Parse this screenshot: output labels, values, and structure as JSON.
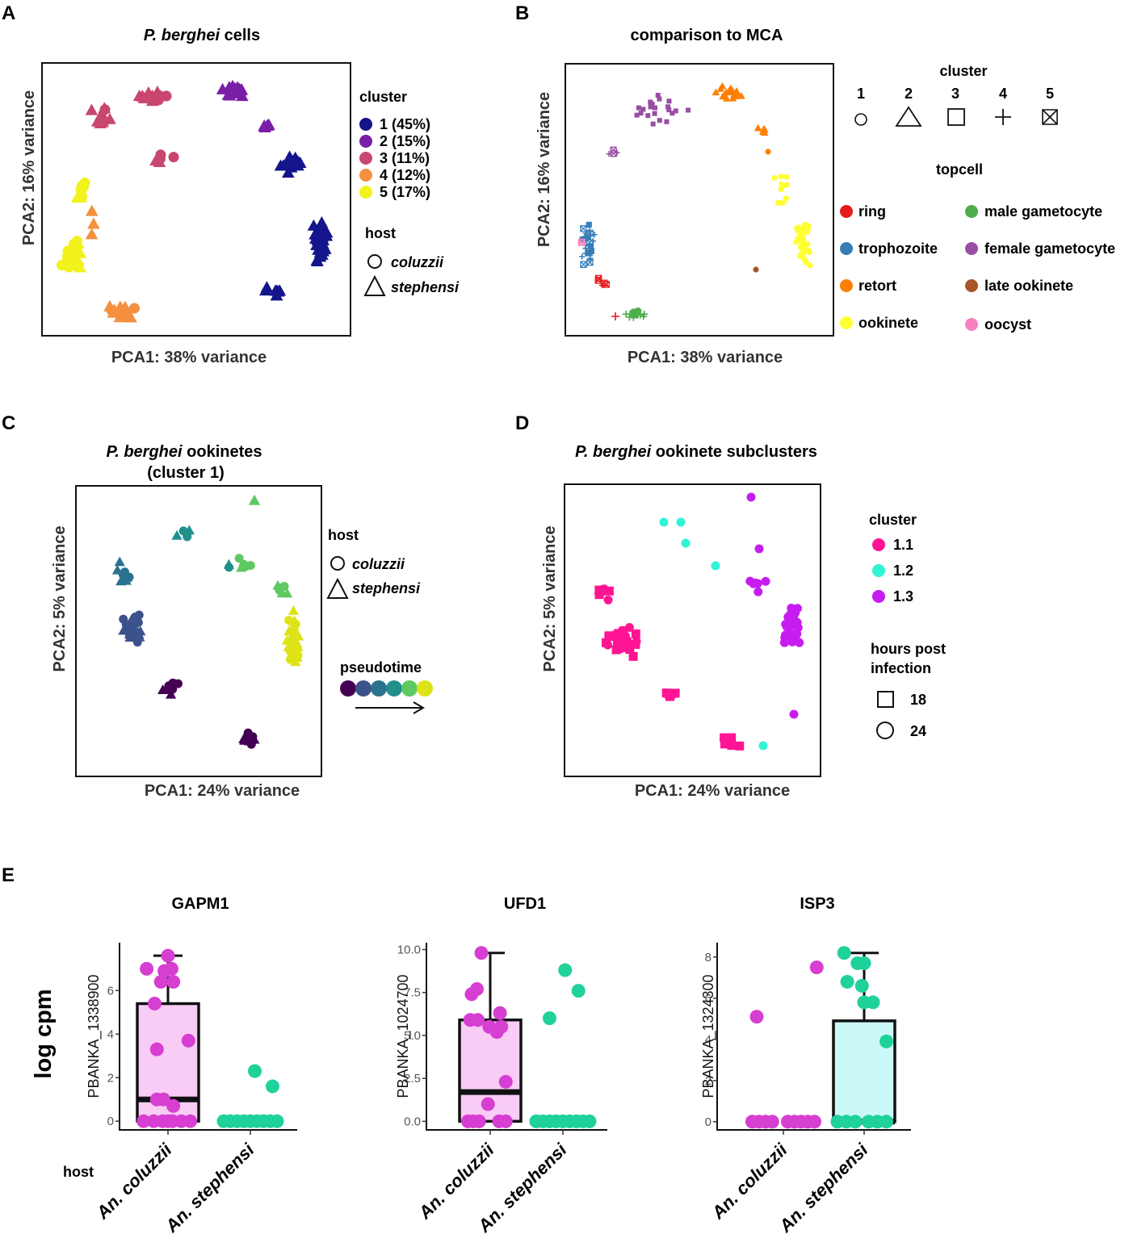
{
  "chart_data": [
    {
      "type": "scatter",
      "panel": "A",
      "title_italic": "P. berghei",
      "title_rest": " cells",
      "xlabel": "PCA1: 38% variance",
      "ylabel": "PCA2: 16% variance",
      "legend": {
        "cluster_title": "cluster",
        "clusters": [
          {
            "label": "1 (45%)",
            "color": "#14148c"
          },
          {
            "label": "2 (15%)",
            "color": "#7a1ea8"
          },
          {
            "label": "3 (11%)",
            "color": "#c9466e"
          },
          {
            "label": "4 (12%)",
            "color": "#f4903e"
          },
          {
            "label": "5 (17%)",
            "color": "#f2f21c"
          }
        ],
        "host_title": "host",
        "hosts": [
          "coluzzii",
          "stephensi"
        ]
      }
    },
    {
      "type": "scatter",
      "panel": "B",
      "title": "comparison to MCA",
      "xlabel": "PCA1: 38% variance",
      "ylabel": "PCA2: 16% variance",
      "legend": {
        "cluster_title": "cluster",
        "clusters": [
          "1",
          "2",
          "3",
          "4",
          "5"
        ],
        "topcell_title": "topcell",
        "topcells": [
          {
            "label": "ring",
            "color": "#e41a1c"
          },
          {
            "label": "trophozoite",
            "color": "#377eb8"
          },
          {
            "label": "retort",
            "color": "#ff7f00"
          },
          {
            "label": "ookinete",
            "color": "#ffff33"
          },
          {
            "label": "male gametocyte",
            "color": "#4daf4a"
          },
          {
            "label": "female gametocyte",
            "color": "#984ea3"
          },
          {
            "label": "late ookinete",
            "color": "#a65628"
          },
          {
            "label": "oocyst",
            "color": "#f781bf"
          }
        ]
      }
    },
    {
      "type": "scatter",
      "panel": "C",
      "title_italic": "P. berghei",
      "title_rest": " ookinetes",
      "title_line2": "(cluster 1)",
      "xlabel": "PCA1: 24% variance",
      "ylabel": "PCA2: 5% variance",
      "legend": {
        "host_title": "host",
        "hosts": [
          "coluzzii",
          "stephensi"
        ],
        "pseudotime_title": "pseudotime",
        "pseudotime_colors": [
          "#440154",
          "#3b528b",
          "#2c728e",
          "#21908d",
          "#5ec962",
          "#dde318"
        ]
      }
    },
    {
      "type": "scatter",
      "panel": "D",
      "title_italic": "P. berghei",
      "title_rest": " ookinete subclusters",
      "xlabel": "PCA1: 24% variance",
      "ylabel": "PCA2: 5% variance",
      "legend": {
        "cluster_title": "cluster",
        "clusters": [
          {
            "label": "1.1",
            "color": "#ff1493"
          },
          {
            "label": "1.2",
            "color": "#2ff5d5"
          },
          {
            "label": "1.3",
            "color": "#c71cf0"
          }
        ],
        "hpi_title_line1": "hours post",
        "hpi_title_line2": "infection",
        "hpi": [
          "18",
          "24"
        ]
      }
    },
    {
      "type": "box",
      "panel": "E",
      "ylabel_shared": "log cpm",
      "xlabel": "host",
      "categories": [
        "An. coluzzii",
        "An. stephensi"
      ],
      "colors": {
        "coluzzii": "#d63fd1",
        "stephensi": "#1fd19a",
        "box_coluzzii": "#f9ccf5",
        "box_stephensi": "#ccf9f7"
      },
      "plots": [
        {
          "title": "GAPM1",
          "gene": "PBANKA_1338900",
          "ylim": [
            -0.4,
            8.2
          ],
          "ticks": [
            0,
            2,
            4,
            6
          ],
          "tick_labels": [
            "0",
            "2",
            "4",
            "6"
          ],
          "box": {
            "group": 0,
            "q1": 0,
            "median": 1.0,
            "q3": 5.4,
            "whisker_low": 0,
            "whisker_high": 7.6
          },
          "points": [
            {
              "group": 0,
              "dx": 0.0,
              "y": 7.6
            },
            {
              "group": 0,
              "dx": -0.48,
              "y": 7.0
            },
            {
              "group": 0,
              "dx": 0.08,
              "y": 7.0
            },
            {
              "group": 0,
              "dx": -0.16,
              "y": 6.4
            },
            {
              "group": 0,
              "dx": -0.08,
              "y": 6.9
            },
            {
              "group": 0,
              "dx": 0.12,
              "y": 6.4
            },
            {
              "group": 0,
              "dx": -0.3,
              "y": 5.4
            },
            {
              "group": 0,
              "dx": -0.25,
              "y": 3.3
            },
            {
              "group": 0,
              "dx": 0.46,
              "y": 3.7
            },
            {
              "group": 0,
              "dx": -0.25,
              "y": 1.0
            },
            {
              "group": 0,
              "dx": -0.1,
              "y": 1.0
            },
            {
              "group": 0,
              "dx": 0.12,
              "y": 0.7
            },
            {
              "group": 0,
              "dx": -0.55,
              "y": 0
            },
            {
              "group": 0,
              "dx": -0.32,
              "y": 0
            },
            {
              "group": 0,
              "dx": -0.12,
              "y": 0
            },
            {
              "group": 0,
              "dx": 0.0,
              "y": 0
            },
            {
              "group": 0,
              "dx": 0.1,
              "y": 0
            },
            {
              "group": 0,
              "dx": 0.3,
              "y": 0
            },
            {
              "group": 0,
              "dx": 0.5,
              "y": 0
            },
            {
              "group": 1,
              "dx": 0.1,
              "y": 2.3
            },
            {
              "group": 1,
              "dx": 0.5,
              "y": 1.6
            },
            {
              "group": 1,
              "dx": -0.6,
              "y": 0
            },
            {
              "group": 1,
              "dx": -0.45,
              "y": 0
            },
            {
              "group": 1,
              "dx": -0.3,
              "y": 0
            },
            {
              "group": 1,
              "dx": -0.15,
              "y": 0
            },
            {
              "group": 1,
              "dx": 0.0,
              "y": 0
            },
            {
              "group": 1,
              "dx": 0.15,
              "y": 0
            },
            {
              "group": 1,
              "dx": 0.3,
              "y": 0
            },
            {
              "group": 1,
              "dx": 0.45,
              "y": 0
            },
            {
              "group": 1,
              "dx": 0.6,
              "y": 0
            }
          ]
        },
        {
          "title": "UFD1",
          "gene": "PBANKA_1024700",
          "ylim": [
            -0.5,
            10.4
          ],
          "ticks": [
            0,
            2.5,
            5,
            7.5,
            10
          ],
          "tick_labels": [
            "0.0",
            "2.5",
            "5.0",
            "7.5",
            "10.0"
          ],
          "box": {
            "group": 0,
            "q1": 0,
            "median": 1.7,
            "q3": 5.9,
            "whisker_low": 0,
            "whisker_high": 9.8
          },
          "points": [
            {
              "group": 0,
              "dx": -0.2,
              "y": 9.8
            },
            {
              "group": 0,
              "dx": -0.3,
              "y": 7.7
            },
            {
              "group": 0,
              "dx": -0.42,
              "y": 7.4
            },
            {
              "group": 0,
              "dx": -0.45,
              "y": 5.9
            },
            {
              "group": 0,
              "dx": -0.28,
              "y": 5.9
            },
            {
              "group": 0,
              "dx": 0.22,
              "y": 6.3
            },
            {
              "group": 0,
              "dx": 0.25,
              "y": 5.5
            },
            {
              "group": 0,
              "dx": 0.15,
              "y": 5.2
            },
            {
              "group": 0,
              "dx": -0.02,
              "y": 5.5
            },
            {
              "group": 0,
              "dx": 0.35,
              "y": 2.3
            },
            {
              "group": 0,
              "dx": -0.05,
              "y": 1.0
            },
            {
              "group": 0,
              "dx": -0.5,
              "y": 0
            },
            {
              "group": 0,
              "dx": -0.38,
              "y": 0
            },
            {
              "group": 0,
              "dx": -0.25,
              "y": 0
            },
            {
              "group": 0,
              "dx": 0.2,
              "y": 0
            },
            {
              "group": 0,
              "dx": 0.35,
              "y": 0
            },
            {
              "group": 1,
              "dx": 0.05,
              "y": 8.8
            },
            {
              "group": 1,
              "dx": 0.35,
              "y": 7.6
            },
            {
              "group": 1,
              "dx": -0.3,
              "y": 6.0
            },
            {
              "group": 1,
              "dx": -0.6,
              "y": 0
            },
            {
              "group": 1,
              "dx": -0.45,
              "y": 0
            },
            {
              "group": 1,
              "dx": -0.3,
              "y": 0
            },
            {
              "group": 1,
              "dx": -0.15,
              "y": 0
            },
            {
              "group": 1,
              "dx": 0.0,
              "y": 0
            },
            {
              "group": 1,
              "dx": 0.15,
              "y": 0
            },
            {
              "group": 1,
              "dx": 0.3,
              "y": 0
            },
            {
              "group": 1,
              "dx": 0.45,
              "y": 0
            },
            {
              "group": 1,
              "dx": 0.6,
              "y": 0
            }
          ]
        },
        {
          "title": "ISP3",
          "gene": "PBANKA_1324300",
          "ylim": [
            -0.4,
            8.7
          ],
          "ticks": [
            0,
            2,
            4,
            6,
            8
          ],
          "tick_labels": [
            "0",
            "2",
            "4",
            "6",
            "8"
          ],
          "box": {
            "group": 1,
            "q1": 0,
            "median": 0,
            "q3": 4.9,
            "whisker_low": 0,
            "whisker_high": 8.2
          },
          "points": [
            {
              "group": 0,
              "dx": 0.75,
              "y": 7.5
            },
            {
              "group": 0,
              "dx": -0.6,
              "y": 5.1
            },
            {
              "group": 0,
              "dx": -0.7,
              "y": 0
            },
            {
              "group": 0,
              "dx": -0.55,
              "y": 0
            },
            {
              "group": 0,
              "dx": -0.4,
              "y": 0
            },
            {
              "group": 0,
              "dx": -0.25,
              "y": 0
            },
            {
              "group": 0,
              "dx": 0.1,
              "y": 0
            },
            {
              "group": 0,
              "dx": 0.25,
              "y": 0
            },
            {
              "group": 0,
              "dx": 0.4,
              "y": 0
            },
            {
              "group": 0,
              "dx": 0.55,
              "y": 0
            },
            {
              "group": 0,
              "dx": 0.7,
              "y": 0
            },
            {
              "group": 1,
              "dx": -0.45,
              "y": 8.2
            },
            {
              "group": 1,
              "dx": -0.15,
              "y": 7.7
            },
            {
              "group": 1,
              "dx": 0.0,
              "y": 7.7
            },
            {
              "group": 1,
              "dx": -0.38,
              "y": 6.8
            },
            {
              "group": 1,
              "dx": -0.05,
              "y": 6.6
            },
            {
              "group": 1,
              "dx": 0.0,
              "y": 5.8
            },
            {
              "group": 1,
              "dx": 0.2,
              "y": 5.8
            },
            {
              "group": 1,
              "dx": 0.5,
              "y": 3.9
            },
            {
              "group": 1,
              "dx": -0.6,
              "y": 0
            },
            {
              "group": 1,
              "dx": -0.4,
              "y": 0
            },
            {
              "group": 1,
              "dx": -0.2,
              "y": 0
            },
            {
              "group": 1,
              "dx": 0.1,
              "y": 0
            },
            {
              "group": 1,
              "dx": 0.3,
              "y": 0
            },
            {
              "group": 1,
              "dx": 0.5,
              "y": 0
            }
          ]
        }
      ]
    }
  ]
}
